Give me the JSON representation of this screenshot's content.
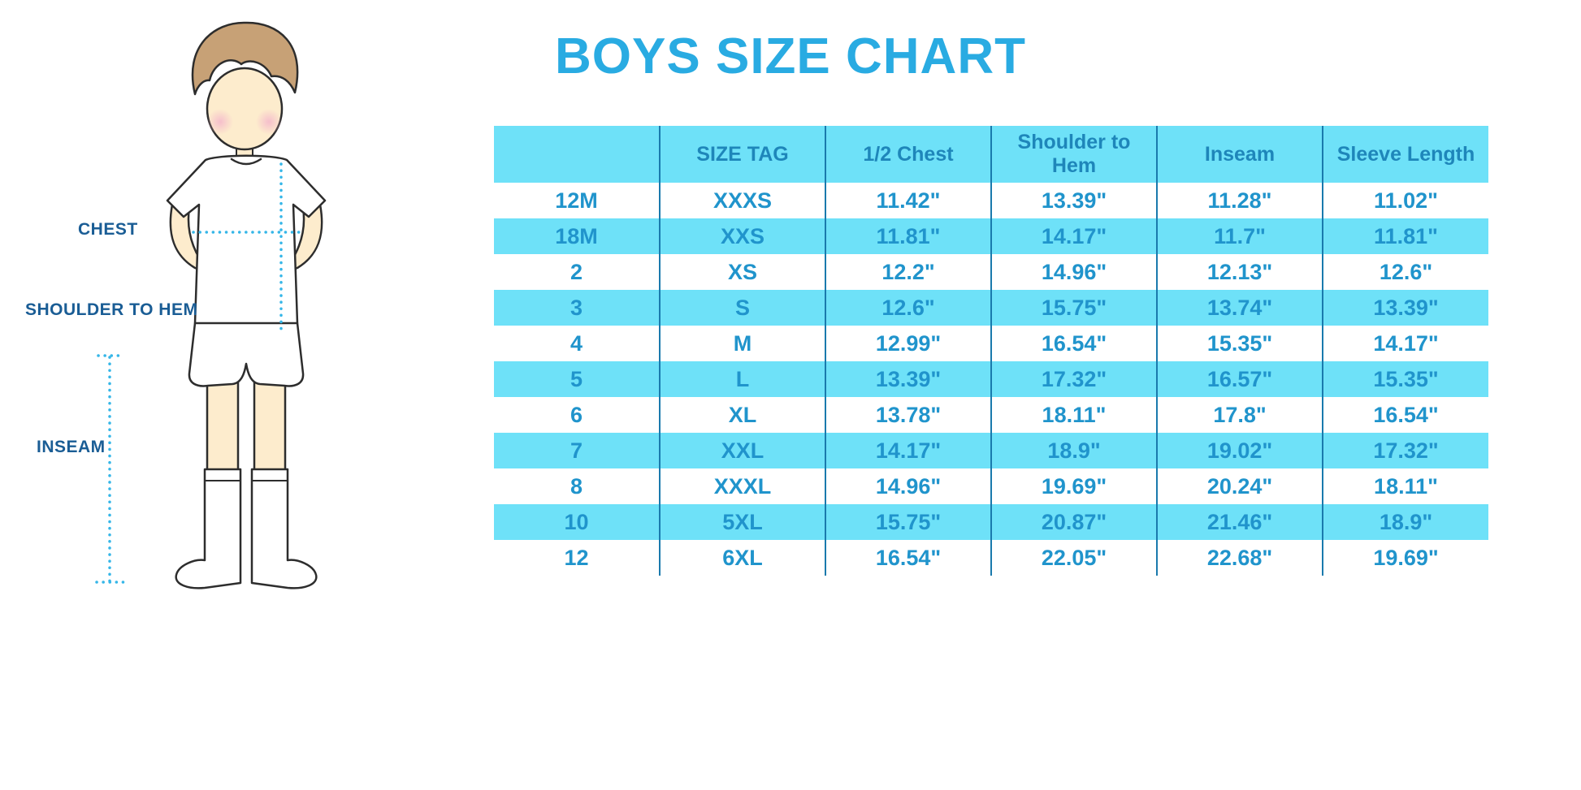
{
  "title": "BOYS SIZE CHART",
  "figure": {
    "labels": {
      "chest": "CHEST",
      "shoulder_to_hem": "SHOULDER TO HEM",
      "inseam": "INSEAM"
    }
  },
  "colors": {
    "title_color": "#29abe2",
    "table_alt_bg": "#6ee1f8",
    "table_cell_text": "#2094cc",
    "table_header_text": "#1e86ba",
    "table_border": "#1a7aad",
    "figure_label_text": "#1a5d95",
    "measure_line": "#35b6e8"
  },
  "chart_data": {
    "type": "table",
    "title": "BOYS SIZE CHART",
    "headers": [
      "",
      "SIZE TAG",
      "1/2 Chest",
      "Shoulder to Hem",
      "Inseam",
      "Sleeve Length"
    ],
    "rows": [
      [
        "12M",
        "XXXS",
        "11.42\"",
        "13.39\"",
        "11.28\"",
        "11.02\""
      ],
      [
        "18M",
        "XXS",
        "11.81\"",
        "14.17\"",
        "11.7\"",
        "11.81\""
      ],
      [
        "2",
        "XS",
        "12.2\"",
        "14.96\"",
        "12.13\"",
        "12.6\""
      ],
      [
        "3",
        "S",
        "12.6\"",
        "15.75\"",
        "13.74\"",
        "13.39\""
      ],
      [
        "4",
        "M",
        "12.99\"",
        "16.54\"",
        "15.35\"",
        "14.17\""
      ],
      [
        "5",
        "L",
        "13.39\"",
        "17.32\"",
        "16.57\"",
        "15.35\""
      ],
      [
        "6",
        "XL",
        "13.78\"",
        "18.11\"",
        "17.8\"",
        "16.54\""
      ],
      [
        "7",
        "XXL",
        "14.17\"",
        "18.9\"",
        "19.02\"",
        "17.32\""
      ],
      [
        "8",
        "XXXL",
        "14.96\"",
        "19.69\"",
        "20.24\"",
        "18.11\""
      ],
      [
        "10",
        "5XL",
        "15.75\"",
        "20.87\"",
        "21.46\"",
        "18.9\""
      ],
      [
        "12",
        "6XL",
        "16.54\"",
        "22.05\"",
        "22.68\"",
        "19.69\""
      ]
    ]
  }
}
